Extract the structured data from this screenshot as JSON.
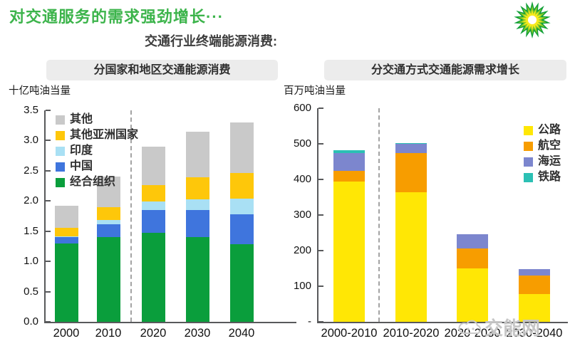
{
  "header": {
    "title": "对交通服务的需求强劲增长···",
    "subtitle": "交通行业终端能源消费:"
  },
  "watermark": {
    "text": "交能网"
  },
  "logo": {
    "name": "bp-helios",
    "colors": [
      "#0f9f38",
      "#86c928",
      "#f7ea1c",
      "#ffffff"
    ]
  },
  "chart_data": [
    {
      "type": "bar",
      "title": "分国家和地区交通能源消费",
      "unit_label": "十亿吨油当量",
      "categories": [
        "2000",
        "2010",
        "2020",
        "2030",
        "2040"
      ],
      "series": [
        {
          "name": "经合组织",
          "color": "#0a9e3c",
          "values": [
            1.3,
            1.4,
            1.47,
            1.4,
            1.28
          ]
        },
        {
          "name": "中国",
          "color": "#3f75dd",
          "values": [
            0.1,
            0.21,
            0.38,
            0.45,
            0.5
          ]
        },
        {
          "name": "印度",
          "color": "#a9e0f4",
          "values": [
            0.02,
            0.08,
            0.14,
            0.18,
            0.26
          ]
        },
        {
          "name": "其他亚洲国家",
          "color": "#fec70a",
          "values": [
            0.14,
            0.21,
            0.27,
            0.36,
            0.42
          ]
        },
        {
          "name": "其他",
          "color": "#c9c9c9",
          "values": [
            0.36,
            0.5,
            0.64,
            0.76,
            0.84
          ]
        }
      ],
      "legend": [
        "其他",
        "其他亚洲国家",
        "印度",
        "中国",
        "经合组织"
      ],
      "legend_position": "top-left",
      "ylim": [
        0,
        3.5
      ],
      "yticks": [
        {
          "label": "3.5",
          "value": 3.5
        },
        {
          "label": "3.0",
          "value": 3.0
        },
        {
          "label": "2.5",
          "value": 2.5
        },
        {
          "label": "2.0",
          "value": 2.0
        },
        {
          "label": "1.5",
          "value": 1.5
        },
        {
          "label": "1.0",
          "value": 1.0
        },
        {
          "label": "0.5",
          "value": 0.5
        },
        {
          "label": "0.0",
          "value": 0.0
        }
      ],
      "dashed_separator_after": "2010",
      "grid": false
    },
    {
      "type": "bar",
      "title": "分交通方式交通能源需求增长",
      "unit_label": "百万吨油当量",
      "categories": [
        "2000-2010",
        "2010-2020",
        "2020-2030",
        "2030-2040"
      ],
      "series": [
        {
          "name": "公路",
          "color": "#ffe705",
          "values": [
            395,
            365,
            150,
            78
          ]
        },
        {
          "name": "航空",
          "color": "#f79d00",
          "values": [
            30,
            110,
            57,
            52
          ]
        },
        {
          "name": "海运",
          "color": "#7c86ce",
          "values": [
            50,
            25,
            40,
            18
          ]
        },
        {
          "name": "铁路",
          "color": "#2cc0b4",
          "values": [
            8,
            2,
            0,
            0
          ]
        }
      ],
      "legend": [
        "公路",
        "航空",
        "海运",
        "铁路"
      ],
      "legend_position": "top-right",
      "ylim": [
        0,
        600
      ],
      "yticks": [
        {
          "label": "600",
          "value": 600
        },
        {
          "label": "500",
          "value": 500
        },
        {
          "label": "400",
          "value": 400
        },
        {
          "label": "300",
          "value": 300
        },
        {
          "label": "200",
          "value": 200
        },
        {
          "label": "100",
          "value": 100
        },
        {
          "label": "-",
          "value": 0
        }
      ],
      "dashed_separator_after": "2000-2010",
      "grid": false
    }
  ]
}
